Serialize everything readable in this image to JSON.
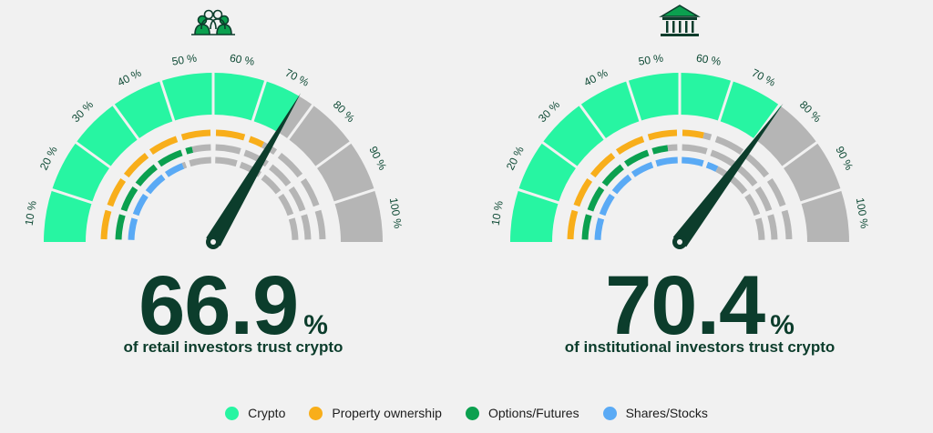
{
  "colors": {
    "crypto": "#27f5a2",
    "property": "#f8ae1a",
    "options": "#0ba04f",
    "shares": "#5aaaf5",
    "inactive": "#b5b5b5",
    "text_dark": "#0c3d2c",
    "tick_text": "#0e4a35"
  },
  "tick_labels": [
    "10 %",
    "20 %",
    "30 %",
    "40 %",
    "50 %",
    "60 %",
    "70 %",
    "80 %",
    "90 %",
    "100 %"
  ],
  "legend": [
    {
      "label": "Crypto",
      "color": "#27f5a2"
    },
    {
      "label": "Property ownership",
      "color": "#f8ae1a"
    },
    {
      "label": "Options/Futures",
      "color": "#0ba04f"
    },
    {
      "label": "Shares/Stocks",
      "color": "#5aaaf5"
    }
  ],
  "chart_data": [
    {
      "type": "gauge",
      "icon": "group-of-people-icon",
      "value_text": "66.9",
      "unit": "%",
      "caption": "of retail investors trust crypto",
      "range": [
        0,
        100
      ],
      "series": [
        {
          "name": "Crypto",
          "value": 66.9
        },
        {
          "name": "Property ownership",
          "value": 65
        },
        {
          "name": "Options/Futures",
          "value": 43
        },
        {
          "name": "Shares/Stocks",
          "value": 38
        }
      ]
    },
    {
      "type": "gauge",
      "icon": "bank-building-icon",
      "value_text": "70.4",
      "unit": "%",
      "caption": "of institutional investors trust crypto",
      "range": [
        0,
        100
      ],
      "series": [
        {
          "name": "Crypto",
          "value": 70.4
        },
        {
          "name": "Property ownership",
          "value": 57
        },
        {
          "name": "Options/Futures",
          "value": 46
        },
        {
          "name": "Shares/Stocks",
          "value": 65
        }
      ]
    }
  ]
}
